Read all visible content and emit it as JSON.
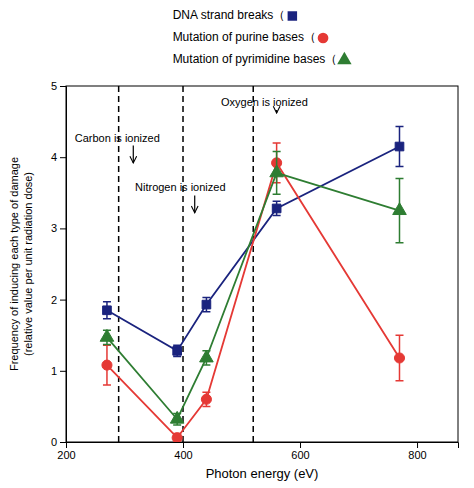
{
  "chart_data": {
    "type": "line",
    "x": [
      270,
      390,
      440,
      560,
      770
    ],
    "series": [
      {
        "name": "DNA strand breaks（",
        "color": "#1a237e",
        "marker": "square",
        "line_style": "solid",
        "values": [
          1.85,
          1.28,
          1.93,
          3.28,
          4.15
        ],
        "errors": [
          0.12,
          0.08,
          0.1,
          0.1,
          0.28
        ]
      },
      {
        "name": "Mutation of purine bases（",
        "color": "#e53935",
        "marker": "circle",
        "line_style": "solid",
        "values": [
          1.08,
          0.06,
          0.6,
          3.92,
          1.18
        ],
        "errors": [
          0.28,
          0.06,
          0.1,
          0.28,
          0.32
        ]
      },
      {
        "name": "Mutation of pyrimidine bases（",
        "color": "#2e7d32",
        "marker": "triangle",
        "line_style": "solid",
        "values": [
          1.47,
          0.32,
          1.18,
          3.78,
          3.25
        ],
        "errors": [
          0.1,
          0.08,
          0.1,
          0.3,
          0.45
        ]
      }
    ],
    "xlabel": "Photon energy (eV)",
    "ylabel": "Frequency of inducing each type of damage\n(relative value per unit radiation dose)",
    "xlim": [
      200,
      870
    ],
    "ylim": [
      0,
      5
    ],
    "xticks": [
      200,
      400,
      600,
      800
    ],
    "yticks": [
      0,
      1,
      2,
      3,
      4,
      5
    ],
    "vlines": [
      290,
      400,
      520
    ],
    "annotations": [
      {
        "text": "Carbon is ionized",
        "xy": [
          315,
          3.92
        ],
        "xytext": [
          215,
          4.22
        ]
      },
      {
        "text": "Nitrogen is ionized",
        "xy": [
          420,
          3.22
        ],
        "xytext": [
          318,
          3.52
        ]
      },
      {
        "text": "Oxygen is ionized",
        "xy": [
          560,
          4.62
        ],
        "xytext": [
          465,
          4.72
        ]
      }
    ],
    "grid": false,
    "legend": "top"
  }
}
